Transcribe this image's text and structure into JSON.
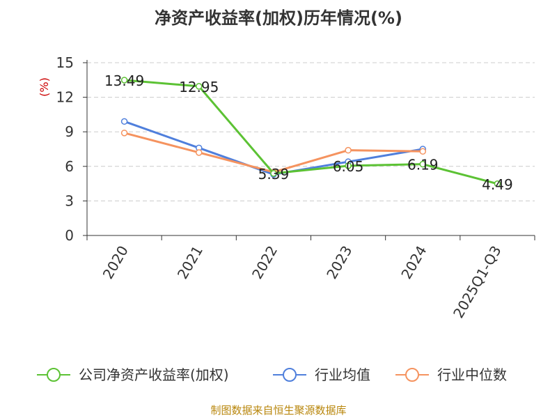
{
  "chart_data": {
    "type": "line",
    "title": "净资产收益率(加权)历年情况(%)",
    "ylabel": "(%)",
    "ylim": [
      0,
      15
    ],
    "yticks": [
      0,
      3,
      6,
      9,
      12,
      15
    ],
    "grid": true,
    "legend_position": "bottom",
    "categories": [
      "2020",
      "2021",
      "2022",
      "2023",
      "2024",
      "2025Q1-Q3"
    ],
    "series": [
      {
        "name": "公司净资产收益率(加权)",
        "color": "#5cc234",
        "values": [
          13.49,
          12.95,
          5.39,
          6.05,
          6.19,
          4.49
        ],
        "labels": [
          "13.49",
          "12.95",
          "5.39",
          "6.05",
          "6.19",
          "4.49"
        ]
      },
      {
        "name": "行业均值",
        "color": "#4f7fdc",
        "values": [
          9.9,
          7.6,
          5.3,
          6.4,
          7.5,
          null
        ]
      },
      {
        "name": "行业中位数",
        "color": "#f5935f",
        "values": [
          8.9,
          7.2,
          5.5,
          7.4,
          7.3,
          null
        ]
      }
    ]
  },
  "source": "制图数据来自恒生聚源数据库"
}
